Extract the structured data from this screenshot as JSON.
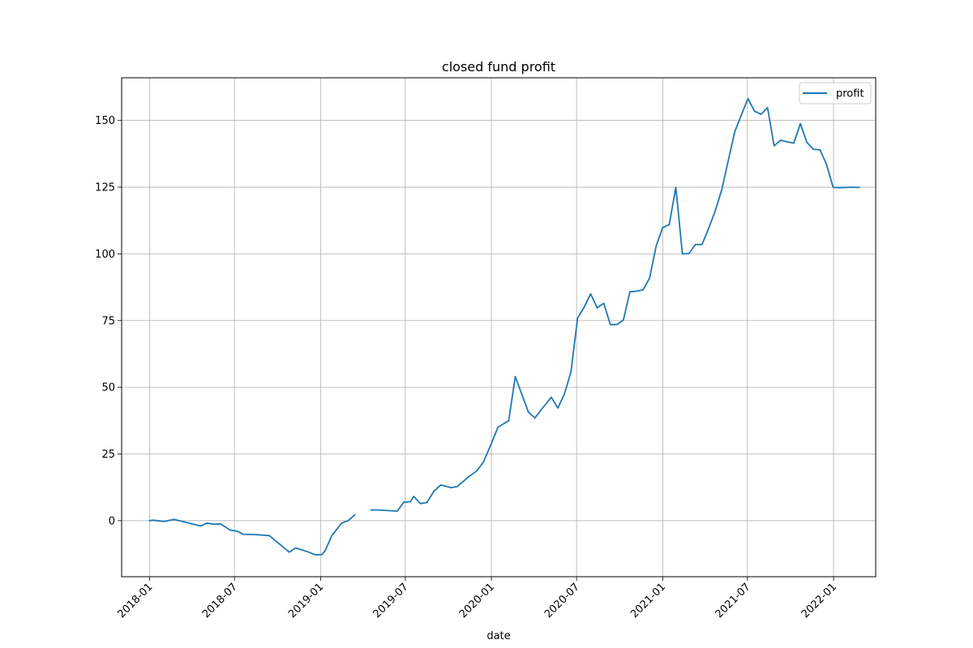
{
  "chart_data": {
    "type": "line",
    "title": "closed fund profit",
    "xlabel": "date",
    "ylabel": "",
    "grid": true,
    "legend_position": "top-right",
    "x_ticks": [
      "2018-01",
      "2018-07",
      "2019-01",
      "2019-07",
      "2020-01",
      "2020-07",
      "2021-01",
      "2021-07",
      "2022-01"
    ],
    "y_ticks": [
      0,
      25,
      50,
      75,
      100,
      125,
      150
    ],
    "xlim": [
      "2017-11-02",
      "2022-04-01"
    ],
    "ylim": [
      -21,
      166
    ],
    "series": [
      {
        "name": "profit",
        "color": "#1f77b4",
        "segments": [
          {
            "x": [
              "2018-01-01",
              "2018-01-08",
              "2018-02-01",
              "2018-02-22",
              "2018-04-20",
              "2018-05-03",
              "2018-05-18",
              "2018-06-01",
              "2018-06-22",
              "2018-07-06",
              "2018-07-20",
              "2018-08-15",
              "2018-09-14",
              "2018-10-26",
              "2018-11-09",
              "2018-12-07",
              "2018-12-21",
              "2019-01-04",
              "2019-01-11",
              "2019-01-25",
              "2019-02-15",
              "2019-03-01",
              "2019-03-15"
            ],
            "y": [
              0.0,
              0.2,
              -0.3,
              0.5,
              -2.0,
              -0.9,
              -1.3,
              -1.2,
              -3.5,
              -3.9,
              -5.1,
              -5.2,
              -5.6,
              -11.8,
              -10.2,
              -11.8,
              -12.8,
              -12.7,
              -11.2,
              -5.6,
              -0.9,
              0.0,
              2.2
            ]
          },
          {
            "x": [
              "2019-04-19",
              "2019-05-03",
              "2019-06-14",
              "2019-06-28",
              "2019-07-05",
              "2019-07-12",
              "2019-07-19",
              "2019-08-02",
              "2019-08-16",
              "2019-09-01",
              "2019-09-15",
              "2019-10-07",
              "2019-10-20",
              "2019-11-15",
              "2019-12-01",
              "2019-12-15",
              "2020-01-01",
              "2020-01-15",
              "2020-02-07",
              "2020-02-21",
              "2020-03-20",
              "2020-04-03",
              "2020-04-17",
              "2020-05-08",
              "2020-05-22",
              "2020-06-05",
              "2020-06-19",
              "2020-07-03",
              "2020-07-17",
              "2020-07-31",
              "2020-08-14",
              "2020-08-28",
              "2020-09-11",
              "2020-09-25",
              "2020-10-09",
              "2020-10-23",
              "2020-11-06",
              "2020-11-20",
              "2020-12-04",
              "2020-12-18",
              "2021-01-01",
              "2021-01-15",
              "2021-01-29",
              "2021-02-12",
              "2021-02-26",
              "2021-03-12",
              "2021-03-26",
              "2021-04-09",
              "2021-04-23",
              "2021-05-07",
              "2021-05-21",
              "2021-06-04",
              "2021-06-18",
              "2021-07-02",
              "2021-07-16",
              "2021-07-30",
              "2021-08-13",
              "2021-08-27",
              "2021-09-10",
              "2021-09-24",
              "2021-10-08",
              "2021-10-22",
              "2021-11-05",
              "2021-11-19",
              "2021-12-03",
              "2021-12-17",
              "2021-12-31",
              "2022-01-14",
              "2022-01-28",
              "2022-02-11",
              "2022-02-25"
            ],
            "y": [
              4.0,
              4.0,
              3.6,
              7.0,
              7.0,
              7.1,
              9.1,
              6.4,
              6.8,
              11.2,
              13.4,
              12.4,
              12.8,
              16.7,
              18.7,
              22.0,
              29.0,
              35.0,
              37.5,
              54.0,
              40.7,
              38.5,
              41.7,
              46.3,
              42.2,
              47.5,
              55.8,
              75.9,
              80.0,
              85.0,
              79.8,
              81.5,
              73.5,
              73.5,
              75.2,
              85.8,
              86.0,
              86.5,
              91.0,
              103.0,
              109.8,
              111.0,
              125.0,
              100.0,
              100.1,
              103.5,
              103.5,
              109.5,
              116.0,
              124.0,
              135.0,
              145.8,
              152.0,
              158.2,
              153.5,
              152.3,
              154.8,
              140.5,
              142.6,
              142.0,
              141.5,
              148.8,
              141.8,
              139.2,
              139.0,
              133.5,
              124.9,
              124.8,
              124.9,
              125.0,
              124.9
            ]
          }
        ]
      }
    ]
  }
}
